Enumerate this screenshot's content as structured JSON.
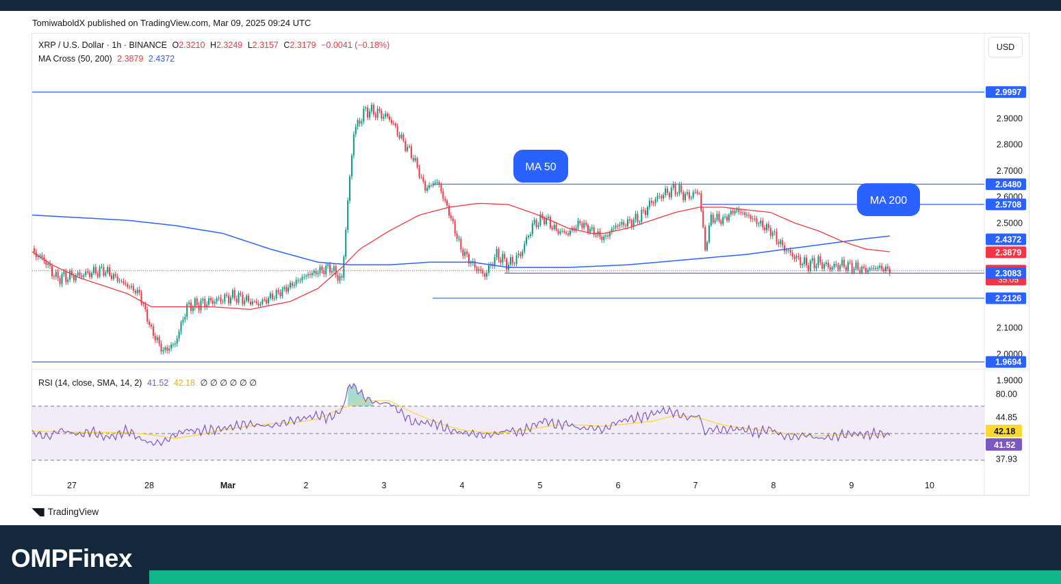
{
  "header": {
    "publisher_line": "TomiwaboldX published on TradingView.com, Mar 09, 2025 09:24 UTC"
  },
  "legend": {
    "symbol": "XRP / U.S. Dollar · 1h · BINANCE",
    "open_label": "O",
    "open": "2.3210",
    "high_label": "H",
    "high": "2.3249",
    "low_label": "L",
    "low": "2.3157",
    "close_label": "C",
    "close": "2.3179",
    "change": "−0.0041 (−0.18%)",
    "ma_label": "MA Cross (50, 200)",
    "ma50_value": "2.3879",
    "ma200_value": "2.4372",
    "rsi_label": "RSI (14, close, SMA, 14, 2)",
    "rsi_value": "41.52",
    "rsi_sma_value": "42.18",
    "rsi_na": "∅ ∅ ∅ ∅ ∅ ∅"
  },
  "currency": "USD",
  "colors": {
    "up": "#089981",
    "down": "#f23645",
    "ma50": "#f23645",
    "ma200": "#2962ff",
    "level": "#2962ff",
    "rsi": "#7e57c2",
    "rsi_sma": "#fdd835",
    "rsi_band": "#ede7f6",
    "footer_bg": "#13283a",
    "footer_accent": "#12b48b"
  },
  "annotations": [
    {
      "text": "MA 50"
    },
    {
      "text": "MA 200"
    }
  ],
  "branding": {
    "tradingview": "TradingView",
    "footer_brand": "OMPFinex"
  },
  "chart_data": [
    {
      "type": "candlestick",
      "title": "XRP / U.S. Dollar · 1h · BINANCE",
      "x_ticks": [
        "27",
        "28",
        "Mar",
        "2",
        "3",
        "4",
        "5",
        "6",
        "7",
        "8",
        "9",
        "10"
      ],
      "y_ticks": [
        "2.9000",
        "2.8000",
        "2.7000",
        "2.6000",
        "2.5000",
        "2.1000",
        "2.0000",
        "1.9000"
      ],
      "ylim": [
        1.87,
        3.08
      ],
      "last_price": "2.3179",
      "countdown": "35:05",
      "price_levels": [
        "2.9997",
        "2.6480",
        "2.5708",
        "2.3083",
        "2.2126",
        "1.9694"
      ],
      "ma200_badge": "2.4372",
      "ma50_badge": "2.3879",
      "price_anchors": [
        [
          0,
          2.39
        ],
        [
          6,
          2.36
        ],
        [
          12,
          2.29
        ],
        [
          24,
          2.3
        ],
        [
          36,
          2.32
        ],
        [
          48,
          2.26
        ],
        [
          54,
          2.23
        ],
        [
          60,
          2.09
        ],
        [
          66,
          2.01
        ],
        [
          72,
          2.04
        ],
        [
          78,
          2.18
        ],
        [
          90,
          2.2
        ],
        [
          102,
          2.22
        ],
        [
          114,
          2.19
        ],
        [
          126,
          2.24
        ],
        [
          138,
          2.3
        ],
        [
          150,
          2.33
        ],
        [
          156,
          2.28
        ],
        [
          159,
          2.58
        ],
        [
          162,
          2.85
        ],
        [
          168,
          2.93
        ],
        [
          174,
          2.92
        ],
        [
          180,
          2.9
        ],
        [
          186,
          2.82
        ],
        [
          192,
          2.75
        ],
        [
          198,
          2.63
        ],
        [
          204,
          2.66
        ],
        [
          210,
          2.54
        ],
        [
          216,
          2.4
        ],
        [
          222,
          2.34
        ],
        [
          228,
          2.3
        ],
        [
          234,
          2.38
        ],
        [
          240,
          2.34
        ],
        [
          246,
          2.38
        ],
        [
          252,
          2.49
        ],
        [
          258,
          2.52
        ],
        [
          264,
          2.47
        ],
        [
          270,
          2.46
        ],
        [
          276,
          2.5
        ],
        [
          282,
          2.47
        ],
        [
          288,
          2.44
        ],
        [
          294,
          2.49
        ],
        [
          300,
          2.5
        ],
        [
          306,
          2.52
        ],
        [
          312,
          2.58
        ],
        [
          318,
          2.61
        ],
        [
          324,
          2.63
        ],
        [
          330,
          2.6
        ],
        [
          336,
          2.62
        ],
        [
          339,
          2.4
        ],
        [
          342,
          2.52
        ],
        [
          348,
          2.51
        ],
        [
          354,
          2.55
        ],
        [
          360,
          2.53
        ],
        [
          366,
          2.5
        ],
        [
          372,
          2.47
        ],
        [
          378,
          2.41
        ],
        [
          384,
          2.37
        ],
        [
          390,
          2.34
        ],
        [
          396,
          2.35
        ],
        [
          402,
          2.33
        ],
        [
          408,
          2.34
        ],
        [
          414,
          2.33
        ],
        [
          420,
          2.32
        ],
        [
          426,
          2.33
        ],
        [
          432,
          2.32
        ]
      ],
      "ma50_anchors": [
        [
          0,
          2.39
        ],
        [
          10,
          2.34
        ],
        [
          24,
          2.29
        ],
        [
          36,
          2.26
        ],
        [
          48,
          2.23
        ],
        [
          60,
          2.18
        ],
        [
          72,
          2.18
        ],
        [
          90,
          2.18
        ],
        [
          110,
          2.17
        ],
        [
          130,
          2.2
        ],
        [
          144,
          2.25
        ],
        [
          156,
          2.33
        ],
        [
          165,
          2.4
        ],
        [
          180,
          2.47
        ],
        [
          195,
          2.53
        ],
        [
          210,
          2.56
        ],
        [
          225,
          2.575
        ],
        [
          240,
          2.57
        ],
        [
          255,
          2.53
        ],
        [
          270,
          2.48
        ],
        [
          282,
          2.46
        ],
        [
          288,
          2.46
        ],
        [
          300,
          2.48
        ],
        [
          312,
          2.51
        ],
        [
          324,
          2.54
        ],
        [
          336,
          2.56
        ],
        [
          348,
          2.56
        ],
        [
          360,
          2.55
        ],
        [
          372,
          2.54
        ],
        [
          384,
          2.5
        ],
        [
          396,
          2.47
        ],
        [
          408,
          2.43
        ],
        [
          420,
          2.4
        ],
        [
          432,
          2.39
        ]
      ],
      "ma200_anchors": [
        [
          0,
          2.53
        ],
        [
          24,
          2.52
        ],
        [
          48,
          2.51
        ],
        [
          72,
          2.49
        ],
        [
          96,
          2.46
        ],
        [
          120,
          2.4
        ],
        [
          144,
          2.35
        ],
        [
          160,
          2.34
        ],
        [
          180,
          2.34
        ],
        [
          200,
          2.35
        ],
        [
          222,
          2.35
        ],
        [
          240,
          2.33
        ],
        [
          270,
          2.33
        ],
        [
          300,
          2.34
        ],
        [
          330,
          2.36
        ],
        [
          360,
          2.38
        ],
        [
          390,
          2.41
        ],
        [
          420,
          2.44
        ],
        [
          432,
          2.45
        ]
      ]
    },
    {
      "type": "line",
      "title": "RSI (14, close, SMA, 14, 2)",
      "y_ticks": [
        "80.00",
        "44.85",
        "37.93"
      ],
      "ylim": [
        30,
        95
      ],
      "band": [
        37.93,
        44.85
      ],
      "value": "41.52",
      "sma_value": "42.18",
      "rsi_anchors": [
        [
          0,
          44
        ],
        [
          8,
          40
        ],
        [
          14,
          46
        ],
        [
          24,
          42
        ],
        [
          30,
          45
        ],
        [
          36,
          40
        ],
        [
          42,
          41
        ],
        [
          48,
          46
        ],
        [
          54,
          39
        ],
        [
          60,
          35
        ],
        [
          66,
          36
        ],
        [
          72,
          42
        ],
        [
          78,
          46
        ],
        [
          84,
          45
        ],
        [
          96,
          47
        ],
        [
          108,
          51
        ],
        [
          120,
          49
        ],
        [
          132,
          54
        ],
        [
          144,
          58
        ],
        [
          150,
          56
        ],
        [
          156,
          62
        ],
        [
          160,
          84
        ],
        [
          164,
          79
        ],
        [
          168,
          72
        ],
        [
          174,
          68
        ],
        [
          180,
          68
        ],
        [
          186,
          60
        ],
        [
          192,
          52
        ],
        [
          198,
          52
        ],
        [
          204,
          51
        ],
        [
          210,
          46
        ],
        [
          216,
          44
        ],
        [
          222,
          43
        ],
        [
          228,
          41
        ],
        [
          234,
          43
        ],
        [
          240,
          46
        ],
        [
          246,
          44
        ],
        [
          252,
          49
        ],
        [
          258,
          54
        ],
        [
          264,
          50
        ],
        [
          270,
          51
        ],
        [
          276,
          47
        ],
        [
          282,
          48
        ],
        [
          288,
          46
        ],
        [
          294,
          52
        ],
        [
          300,
          55
        ],
        [
          306,
          56
        ],
        [
          312,
          59
        ],
        [
          318,
          62
        ],
        [
          324,
          60
        ],
        [
          330,
          56
        ],
        [
          336,
          58
        ],
        [
          339,
          43
        ],
        [
          342,
          47
        ],
        [
          348,
          46
        ],
        [
          354,
          47
        ],
        [
          360,
          46
        ],
        [
          366,
          44
        ],
        [
          372,
          47
        ],
        [
          378,
          41
        ],
        [
          384,
          40
        ],
        [
          390,
          42
        ],
        [
          396,
          39
        ],
        [
          402,
          40
        ],
        [
          408,
          42
        ],
        [
          414,
          43
        ],
        [
          420,
          42
        ],
        [
          426,
          43
        ],
        [
          432,
          42
        ]
      ],
      "sma_anchors": [
        [
          0,
          45
        ],
        [
          24,
          44
        ],
        [
          48,
          44
        ],
        [
          60,
          42
        ],
        [
          72,
          39
        ],
        [
          84,
          42
        ],
        [
          96,
          46
        ],
        [
          108,
          49
        ],
        [
          120,
          51
        ],
        [
          132,
          52
        ],
        [
          144,
          55
        ],
        [
          156,
          64
        ],
        [
          168,
          70
        ],
        [
          180,
          70
        ],
        [
          192,
          60
        ],
        [
          204,
          52
        ],
        [
          216,
          46
        ],
        [
          228,
          44
        ],
        [
          240,
          44
        ],
        [
          252,
          47
        ],
        [
          264,
          50
        ],
        [
          276,
          50
        ],
        [
          288,
          49
        ],
        [
          300,
          51
        ],
        [
          312,
          53
        ],
        [
          324,
          58
        ],
        [
          336,
          56
        ],
        [
          348,
          50
        ],
        [
          360,
          47
        ],
        [
          372,
          45
        ],
        [
          384,
          42
        ],
        [
          396,
          41
        ],
        [
          408,
          42
        ],
        [
          420,
          42
        ],
        [
          432,
          42
        ]
      ]
    }
  ]
}
